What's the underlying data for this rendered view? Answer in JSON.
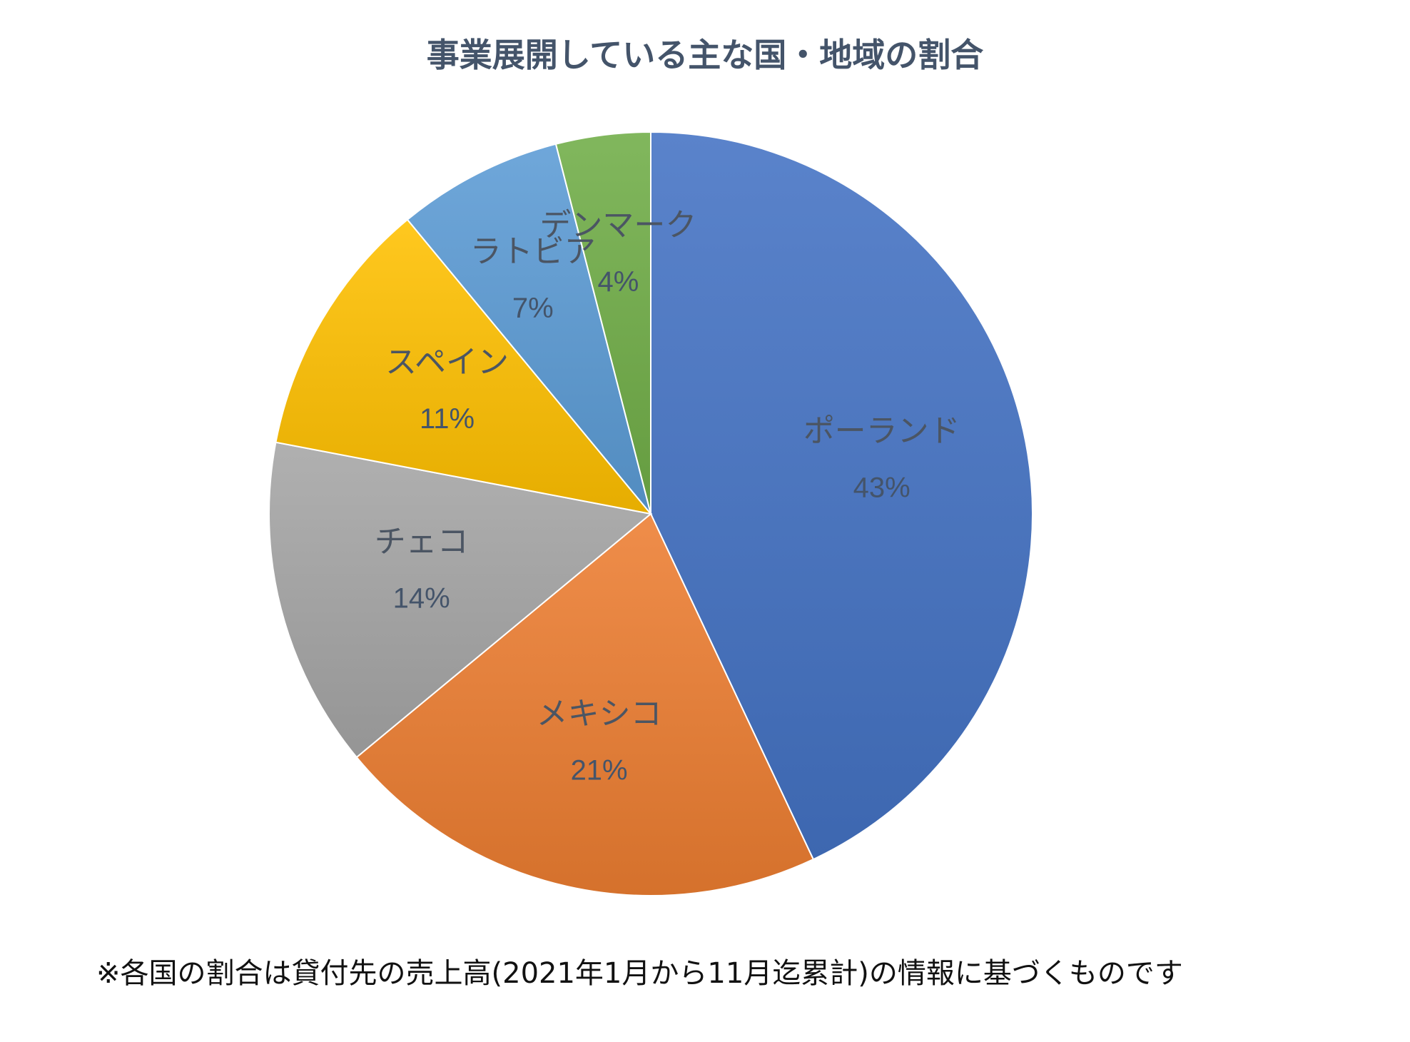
{
  "chart_data": {
    "type": "pie",
    "title": "事業展開している主な国・地域の割合",
    "start_direction": "12 o'clock, clockwise",
    "slices": [
      {
        "label": "ポーランド",
        "value": 43,
        "value_label": "43%",
        "color": "#4472c4"
      },
      {
        "label": "メキシコ",
        "value": 21,
        "value_label": "21%",
        "color": "#ed7d31"
      },
      {
        "label": "チェコ",
        "value": 14,
        "value_label": "14%",
        "color": "#a5a5a5"
      },
      {
        "label": "スペイン",
        "value": 11,
        "value_label": "11%",
        "color": "#ffc000"
      },
      {
        "label": "ラトビア",
        "value": 7,
        "value_label": "7%",
        "color": "#5b9bd5"
      },
      {
        "label": "デンマーク",
        "value": 4,
        "value_label": "4%",
        "color": "#70ad47"
      }
    ],
    "footnote": "※各国の割合は貸付先の売上高(2021年1月から11月迄累計)の情報に基づくものです"
  }
}
